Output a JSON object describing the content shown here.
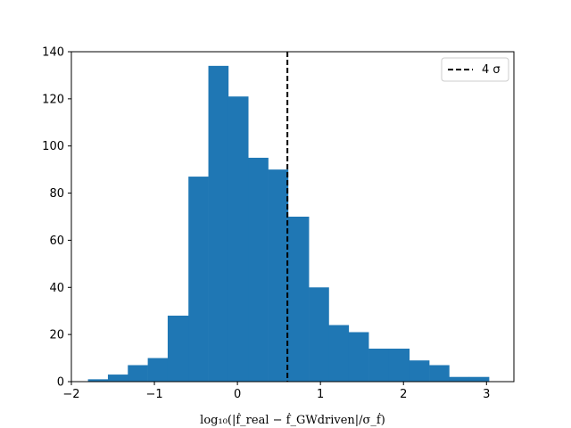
{
  "chart_data": {
    "type": "bar",
    "subtype": "histogram",
    "bin_edges": [
      -1.8,
      -1.56,
      -1.32,
      -1.08,
      -0.84,
      -0.59,
      -0.35,
      -0.11,
      0.13,
      0.37,
      0.61,
      0.86,
      1.1,
      1.34,
      1.58,
      1.82,
      2.07,
      2.31,
      2.55,
      2.79,
      3.03
    ],
    "counts": [
      1,
      3,
      7,
      10,
      28,
      87,
      134,
      121,
      95,
      90,
      70,
      40,
      24,
      21,
      14,
      14,
      9,
      7,
      2,
      2
    ],
    "xlim": [
      -2.0,
      3.33
    ],
    "ylim": [
      0,
      140
    ],
    "xticks": [
      -2,
      -1,
      0,
      1,
      2,
      3
    ],
    "yticks": [
      0,
      20,
      40,
      60,
      80,
      100,
      120,
      140
    ],
    "xtick_labels": [
      "−2",
      "−1",
      "0",
      "1",
      "2",
      "3"
    ],
    "ytick_labels": [
      "0",
      "20",
      "40",
      "60",
      "80",
      "100",
      "120",
      "140"
    ],
    "xlabel": "log₁₀(|ḟ_real − ḟ_GWdriven|/σ_ḟ)",
    "ylabel": "",
    "title": "",
    "grid": false,
    "bar_color": "#1f77b4",
    "vline": {
      "x": 0.602,
      "color": "#000000",
      "style": "dashed"
    },
    "legend": {
      "position": "top-right",
      "entries": [
        {
          "label": "4 σ",
          "style": "dashed",
          "color": "#000000"
        }
      ]
    }
  }
}
